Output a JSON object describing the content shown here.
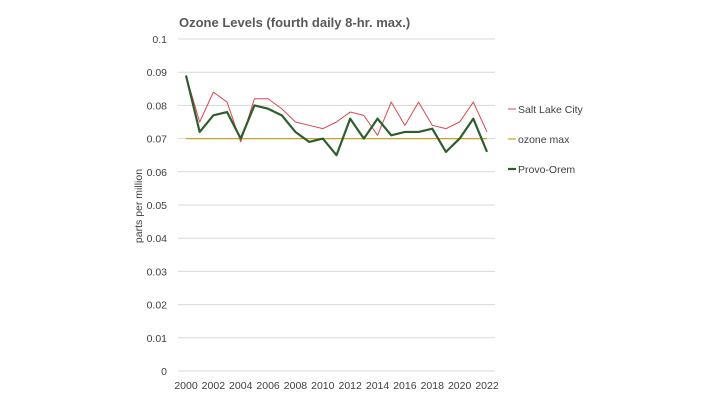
{
  "chart_data": {
    "type": "line",
    "title": "Ozone Levels (fourth daily 8-hr. max.)",
    "xlabel": "",
    "ylabel": "parts per million",
    "x": [
      2000,
      2001,
      2002,
      2003,
      2004,
      2005,
      2006,
      2007,
      2008,
      2009,
      2010,
      2011,
      2012,
      2013,
      2014,
      2015,
      2016,
      2017,
      2018,
      2019,
      2020,
      2021,
      2022
    ],
    "x_tick_labels": [
      "2000",
      "2002",
      "2004",
      "2006",
      "2008",
      "2010",
      "2012",
      "2014",
      "2016",
      "2018",
      "2020",
      "2022"
    ],
    "y_tick_labels": [
      "0",
      "0.01",
      "0.02",
      "0.03",
      "0.04",
      "0.05",
      "0.06",
      "0.07",
      "0.08",
      "0.09",
      "0.1"
    ],
    "ylim": [
      0,
      0.1
    ],
    "grid": true,
    "legend_position": "right",
    "series": [
      {
        "name": "Salt Lake City",
        "color": "#d9484f",
        "values": [
          0.089,
          0.075,
          0.084,
          0.081,
          0.069,
          0.082,
          0.082,
          0.079,
          0.075,
          0.074,
          0.073,
          0.075,
          0.078,
          0.077,
          0.071,
          0.081,
          0.074,
          0.081,
          0.074,
          0.073,
          0.075,
          0.081,
          0.072
        ]
      },
      {
        "name": "ozone max",
        "color": "#c9a227",
        "values": [
          0.07,
          0.07,
          0.07,
          0.07,
          0.07,
          0.07,
          0.07,
          0.07,
          0.07,
          0.07,
          0.07,
          0.07,
          0.07,
          0.07,
          0.07,
          0.07,
          0.07,
          0.07,
          0.07,
          0.07,
          0.07,
          0.07,
          0.07
        ]
      },
      {
        "name": "Provo-Orem",
        "color": "#2e5e2e",
        "values": [
          0.089,
          0.072,
          0.077,
          0.078,
          0.07,
          0.08,
          0.079,
          0.077,
          0.072,
          0.069,
          0.07,
          0.065,
          0.076,
          0.07,
          0.076,
          0.071,
          0.072,
          0.072,
          0.073,
          0.066,
          0.07,
          0.076,
          0.066
        ]
      }
    ]
  }
}
